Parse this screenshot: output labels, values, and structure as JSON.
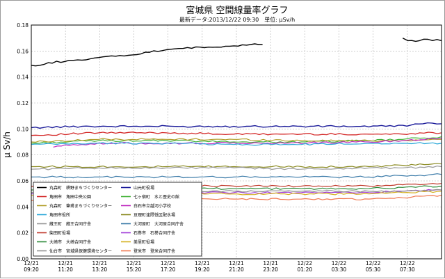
{
  "chart_data": {
    "type": "line",
    "title": "宮城県 空間線量率グラフ",
    "subtitle": "最新データ:2013/12/22 09:30　単位: μSv/h",
    "ylabel": "μ Sv/h",
    "xlabel": "",
    "ylim": [
      0,
      0.18
    ],
    "y_ticks": [
      "0.18",
      "0.16",
      "0.14",
      "0.12",
      "0.10",
      "0.08",
      "0.06",
      "0.04",
      "0.02",
      "0.00"
    ],
    "x_ticks": [
      [
        "12/21",
        "09:20"
      ],
      [
        "12/21",
        "11:20"
      ],
      [
        "12/21",
        "13:20"
      ],
      [
        "12/21",
        "15:20"
      ],
      [
        "12/21",
        "17:20"
      ],
      [
        "12/21",
        "19:20"
      ],
      [
        "12/21",
        "21:20"
      ],
      [
        "12/21",
        "23:20"
      ],
      [
        "12/22",
        "01:20"
      ],
      [
        "12/22",
        "03:30"
      ],
      [
        "12/22",
        "05:30"
      ],
      [
        "12/22",
        "07:30"
      ]
    ],
    "grid": true,
    "legend_position": "bottom-left",
    "x_hours": [
      0,
      24.3
    ],
    "legend": [
      "丸森町　耕野まちづくりセンター",
      "山元町役場",
      "角田市　角田中央公園",
      "七ヶ宿町　水と歴史の館",
      "丸森町　筆甫まちづくりセンター",
      "白石市立越河小学校",
      "角田市役所",
      "亘理町逢隈低区配水場",
      "蔵王町　蔵王合同庁舎",
      "大河原町　大河原合同庁舎",
      "柴田町役場",
      "石巻市　石巻合同庁舎",
      "大崎市　大崎合同庁舎",
      "美里町役場",
      "仙台市　宮城県保健環境センター",
      "登米市　登米合同庁舎"
    ],
    "series": [
      {
        "name": "丸森町　耕野まちづくりセンター",
        "color": "#000000",
        "width": 1.4,
        "segments": [
          [
            [
              0,
              0.149
            ],
            [
              0.5,
              0.149
            ],
            [
              1.0,
              0.151
            ],
            [
              2.0,
              0.152
            ],
            [
              3.0,
              0.153
            ],
            [
              4.0,
              0.155
            ],
            [
              5.0,
              0.156
            ],
            [
              6.0,
              0.157
            ],
            [
              7.0,
              0.159
            ],
            [
              8.0,
              0.161
            ],
            [
              9.0,
              0.162
            ],
            [
              10.0,
              0.163
            ],
            [
              11.0,
              0.163
            ],
            [
              12.0,
              0.164
            ],
            [
              13.0,
              0.165
            ],
            [
              13.7,
              0.165
            ]
          ],
          [
            [
              22.0,
              0.17
            ],
            [
              22.3,
              0.168
            ],
            [
              23.0,
              0.168
            ],
            [
              23.5,
              0.169
            ],
            [
              24.3,
              0.168
            ]
          ]
        ]
      },
      {
        "name": "山元町役場",
        "color": "#1a1a99",
        "width": 1.4,
        "points": [
          [
            0,
            0.101
          ],
          [
            3,
            0.102
          ],
          [
            6,
            0.102
          ],
          [
            9,
            0.102
          ],
          [
            12,
            0.102
          ],
          [
            15,
            0.102
          ],
          [
            18,
            0.102
          ],
          [
            21,
            0.102
          ],
          [
            22.5,
            0.103
          ],
          [
            23.2,
            0.104
          ],
          [
            24.3,
            0.104
          ]
        ]
      },
      {
        "name": "角田市　角田中央公園",
        "color": "#d42a2a",
        "width": 1.3,
        "points": [
          [
            0,
            0.095
          ],
          [
            4,
            0.097
          ],
          [
            8,
            0.097
          ],
          [
            12,
            0.096
          ],
          [
            16,
            0.096
          ],
          [
            20,
            0.096
          ],
          [
            22,
            0.096
          ],
          [
            23,
            0.097
          ],
          [
            24.3,
            0.097
          ]
        ]
      },
      {
        "name": "七ヶ宿町　水と歴史の館",
        "color": "#44b33a",
        "width": 1.2,
        "points": [
          [
            0,
            0.089
          ],
          [
            4,
            0.091
          ],
          [
            8,
            0.091
          ],
          [
            12,
            0.09
          ],
          [
            16,
            0.09
          ],
          [
            20,
            0.091
          ],
          [
            22,
            0.092
          ],
          [
            24.3,
            0.094
          ]
        ]
      },
      {
        "name": "丸森町　筆甫まちづくりセンター",
        "color": "#b3a02e",
        "width": 1.2,
        "points": [
          [
            0,
            0.09
          ],
          [
            4,
            0.092
          ],
          [
            8,
            0.092
          ],
          [
            12,
            0.092
          ],
          [
            16,
            0.091
          ],
          [
            20,
            0.091
          ],
          [
            22,
            0.091
          ],
          [
            24.3,
            0.092
          ]
        ]
      },
      {
        "name": "白石市立越河小学校",
        "color": "#c02cc0",
        "width": 1.2,
        "points": [
          [
            1.3,
            0.086
          ],
          [
            2.5,
            0.088
          ],
          [
            5,
            0.089
          ],
          [
            10,
            0.089
          ],
          [
            15,
            0.089
          ],
          [
            20,
            0.09
          ],
          [
            22,
            0.091
          ],
          [
            24.3,
            0.093
          ]
        ]
      },
      {
        "name": "角田市役所",
        "color": "#2aa8d8",
        "width": 1.2,
        "points": [
          [
            0,
            0.088
          ],
          [
            4,
            0.089
          ],
          [
            8,
            0.089
          ],
          [
            12,
            0.088
          ],
          [
            16,
            0.088
          ],
          [
            20,
            0.089
          ],
          [
            22,
            0.089
          ],
          [
            24.3,
            0.089
          ]
        ]
      },
      {
        "name": "亘理町逢隈低区配水場",
        "color": "#8a8a20",
        "width": 1.2,
        "points": [
          [
            0,
            0.071
          ],
          [
            4,
            0.071
          ],
          [
            8,
            0.071
          ],
          [
            12,
            0.071
          ],
          [
            16,
            0.071
          ],
          [
            20,
            0.071
          ],
          [
            22,
            0.072
          ],
          [
            24.3,
            0.073
          ]
        ]
      },
      {
        "name": "蔵王町　蔵王合同庁舎",
        "color": "#999999",
        "width": 1.2,
        "points": [
          [
            0,
            0.069
          ],
          [
            4,
            0.07
          ],
          [
            8,
            0.07
          ],
          [
            12,
            0.07
          ],
          [
            16,
            0.069
          ],
          [
            20,
            0.07
          ],
          [
            22,
            0.07
          ],
          [
            24.3,
            0.071
          ]
        ]
      },
      {
        "name": "大河原町　大河原合同庁舎",
        "color": "#3a7aa8",
        "width": 1.2,
        "points": [
          [
            0,
            0.063
          ],
          [
            4,
            0.063
          ],
          [
            8,
            0.063
          ],
          [
            12,
            0.063
          ],
          [
            16,
            0.063
          ],
          [
            20,
            0.063
          ],
          [
            22,
            0.064
          ],
          [
            24.3,
            0.065
          ]
        ]
      },
      {
        "name": "柴田町役場",
        "color": "#c0392b",
        "width": 1.2,
        "points": [
          [
            0,
            0.056
          ],
          [
            4,
            0.057
          ],
          [
            8,
            0.056
          ],
          [
            12,
            0.056
          ],
          [
            16,
            0.056
          ],
          [
            20,
            0.056
          ],
          [
            22,
            0.057
          ],
          [
            24.3,
            0.058
          ]
        ]
      },
      {
        "name": "石巻市　石巻合同庁舎",
        "color": "#a03ad8",
        "width": 1.2,
        "points": [
          [
            0,
            0.05
          ],
          [
            4,
            0.051
          ],
          [
            8,
            0.051
          ],
          [
            12,
            0.051
          ],
          [
            16,
            0.051
          ],
          [
            20,
            0.051
          ],
          [
            22,
            0.052
          ],
          [
            24.3,
            0.053
          ]
        ]
      },
      {
        "name": "大崎市　大崎合同庁舎",
        "color": "#2e8b3a",
        "width": 1.2,
        "points": [
          [
            0,
            0.053
          ],
          [
            4,
            0.054
          ],
          [
            8,
            0.054
          ],
          [
            12,
            0.054
          ],
          [
            16,
            0.054
          ],
          [
            20,
            0.054
          ],
          [
            22,
            0.055
          ],
          [
            24.3,
            0.056
          ]
        ]
      },
      {
        "name": "美里町役場",
        "color": "#d4b020",
        "width": 1.2,
        "points": [
          [
            0,
            0.049
          ],
          [
            4,
            0.05
          ],
          [
            8,
            0.05
          ],
          [
            12,
            0.05
          ],
          [
            16,
            0.05
          ],
          [
            20,
            0.05
          ],
          [
            22,
            0.051
          ],
          [
            24.3,
            0.052
          ]
        ]
      },
      {
        "name": "仙台市　宮城県保健環境センター",
        "color": "#8f8f8f",
        "width": 1.2,
        "points": [
          [
            0,
            0.051
          ],
          [
            4,
            0.052
          ],
          [
            8,
            0.052
          ],
          [
            12,
            0.052
          ],
          [
            16,
            0.052
          ],
          [
            20,
            0.052
          ],
          [
            22,
            0.052
          ],
          [
            24.3,
            0.053
          ]
        ]
      },
      {
        "name": "登米市　登米合同庁舎",
        "color": "#f07850",
        "width": 1.2,
        "points": [
          [
            0,
            0.045
          ],
          [
            4,
            0.046
          ],
          [
            8,
            0.046
          ],
          [
            12,
            0.046
          ],
          [
            16,
            0.046
          ],
          [
            20,
            0.046
          ],
          [
            22,
            0.047
          ],
          [
            24.3,
            0.049
          ]
        ]
      }
    ]
  }
}
